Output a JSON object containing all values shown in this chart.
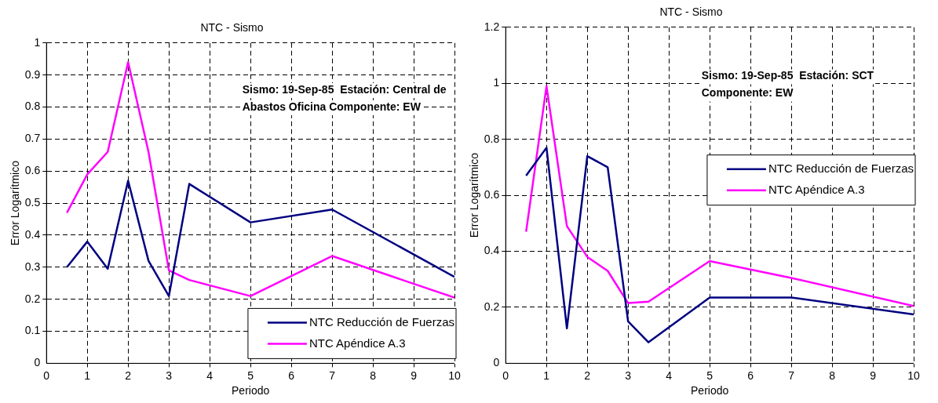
{
  "chart_data": [
    {
      "type": "line",
      "title": "NTC - Sismo",
      "xlabel": "Periodo",
      "ylabel": "Error Logarítmico",
      "annotations": [
        "Sismo: 19-Sep-85  Estación: Central de Abastos Oficina Componente: EW"
      ],
      "x": [
        0.5,
        1,
        1.5,
        2,
        2.5,
        3,
        3.5,
        5,
        7,
        10
      ],
      "xlim": [
        0,
        10
      ],
      "xticks": [
        0,
        1,
        2,
        3,
        4,
        5,
        6,
        7,
        8,
        9,
        10
      ],
      "ylim": [
        0,
        1
      ],
      "yticks": [
        0,
        0.1,
        0.2,
        0.3,
        0.4,
        0.5,
        0.6,
        0.7,
        0.8,
        0.9,
        1
      ],
      "grid": true,
      "legend": "bottom right",
      "marker": "none",
      "line_style": "solid",
      "series": [
        {
          "name": "NTC Reducción de Fuerzas",
          "color": "#000080",
          "values": [
            0.3,
            0.38,
            0.295,
            0.57,
            0.32,
            0.21,
            0.56,
            0.44,
            0.48,
            0.27
          ]
        },
        {
          "name": "NTC Apéndice A.3",
          "color": "#ff00ff",
          "values": [
            0.47,
            0.59,
            0.66,
            0.94,
            0.66,
            0.29,
            0.26,
            0.21,
            0.335,
            0.205
          ]
        }
      ]
    },
    {
      "type": "line",
      "title": "NTC - Sismo",
      "xlabel": "Periodo",
      "ylabel": "Error Logarítmico",
      "annotations": [
        "Sismo: 19-Sep-85  Estación: SCT",
        "Componente: EW"
      ],
      "x": [
        0.5,
        1,
        1.5,
        2,
        2.5,
        3,
        3.5,
        5,
        7,
        10
      ],
      "xlim": [
        0,
        10
      ],
      "xticks": [
        0,
        1,
        2,
        3,
        4,
        5,
        6,
        7,
        8,
        9,
        10
      ],
      "ylim": [
        0,
        1.2
      ],
      "yticks": [
        0,
        0.2,
        0.4,
        0.6,
        0.8,
        1,
        1.2
      ],
      "grid": true,
      "legend": "right",
      "marker": "none",
      "line_style": "solid",
      "series": [
        {
          "name": "NTC Reducción de Fuerzas",
          "color": "#000080",
          "values": [
            0.67,
            0.77,
            0.125,
            0.74,
            0.7,
            0.15,
            0.075,
            0.235,
            0.235,
            0.175
          ]
        },
        {
          "name": "NTC Apéndice A.3",
          "color": "#ff00ff",
          "values": [
            0.47,
            0.99,
            0.49,
            0.38,
            0.33,
            0.215,
            0.22,
            0.365,
            0.305,
            0.205
          ]
        }
      ]
    }
  ]
}
